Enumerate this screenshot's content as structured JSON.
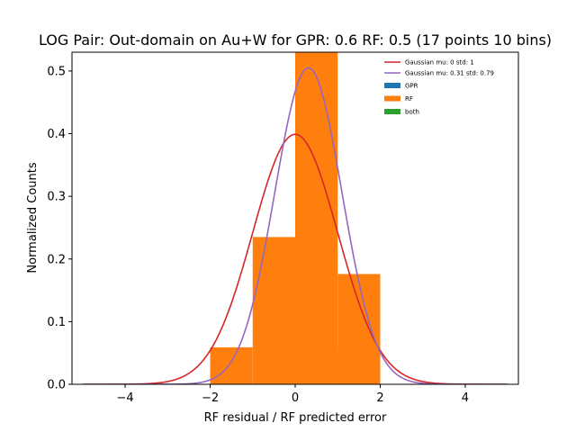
{
  "chart_data": {
    "type": "bar",
    "title": "LOG Pair: Out-domain on Au+W for GPR: 0.6 RF: 0.5 (17 points 10 bins)",
    "xlabel": "RF residual / RF predicted error",
    "ylabel": "Normalized Counts",
    "xlim": [
      -5.25,
      5.25
    ],
    "ylim": [
      0,
      0.53
    ],
    "xticks": [
      -4,
      -2,
      0,
      2,
      4
    ],
    "xtick_labels": [
      "−4",
      "−2",
      "0",
      "2",
      "4"
    ],
    "yticks": [
      0.0,
      0.1,
      0.2,
      0.3,
      0.4,
      0.5
    ],
    "ytick_labels": [
      "0.0",
      "0.1",
      "0.2",
      "0.3",
      "0.4",
      "0.5"
    ],
    "legend_position": "top-right",
    "histograms": [
      {
        "name": "GPR",
        "color": "#1f77b4",
        "bins": [
          {
            "x0": 1,
            "x1": 2,
            "value": 0.059
          }
        ]
      },
      {
        "name": "RF",
        "color": "#ff7f0e",
        "bins": [
          {
            "x0": -2,
            "x1": -1,
            "value": 0.059
          },
          {
            "x0": -1,
            "x1": 0,
            "value": 0.235
          },
          {
            "x0": 0,
            "x1": 1,
            "value": 0.53
          },
          {
            "x0": 1,
            "x1": 2,
            "value": 0.176
          }
        ]
      },
      {
        "name": "both",
        "color": "#2ca02c",
        "bins": []
      }
    ],
    "curves": [
      {
        "name": "Gaussian mu: 0 std: 1",
        "color": "#d62728",
        "mu": 0,
        "std": 1,
        "x_range": [
          -5,
          5
        ]
      },
      {
        "name": "Gaussian mu: 0.31 std: 0.79",
        "color": "#9467bd",
        "mu": 0.31,
        "std": 0.79,
        "x_range": [
          -5,
          5
        ]
      }
    ]
  }
}
